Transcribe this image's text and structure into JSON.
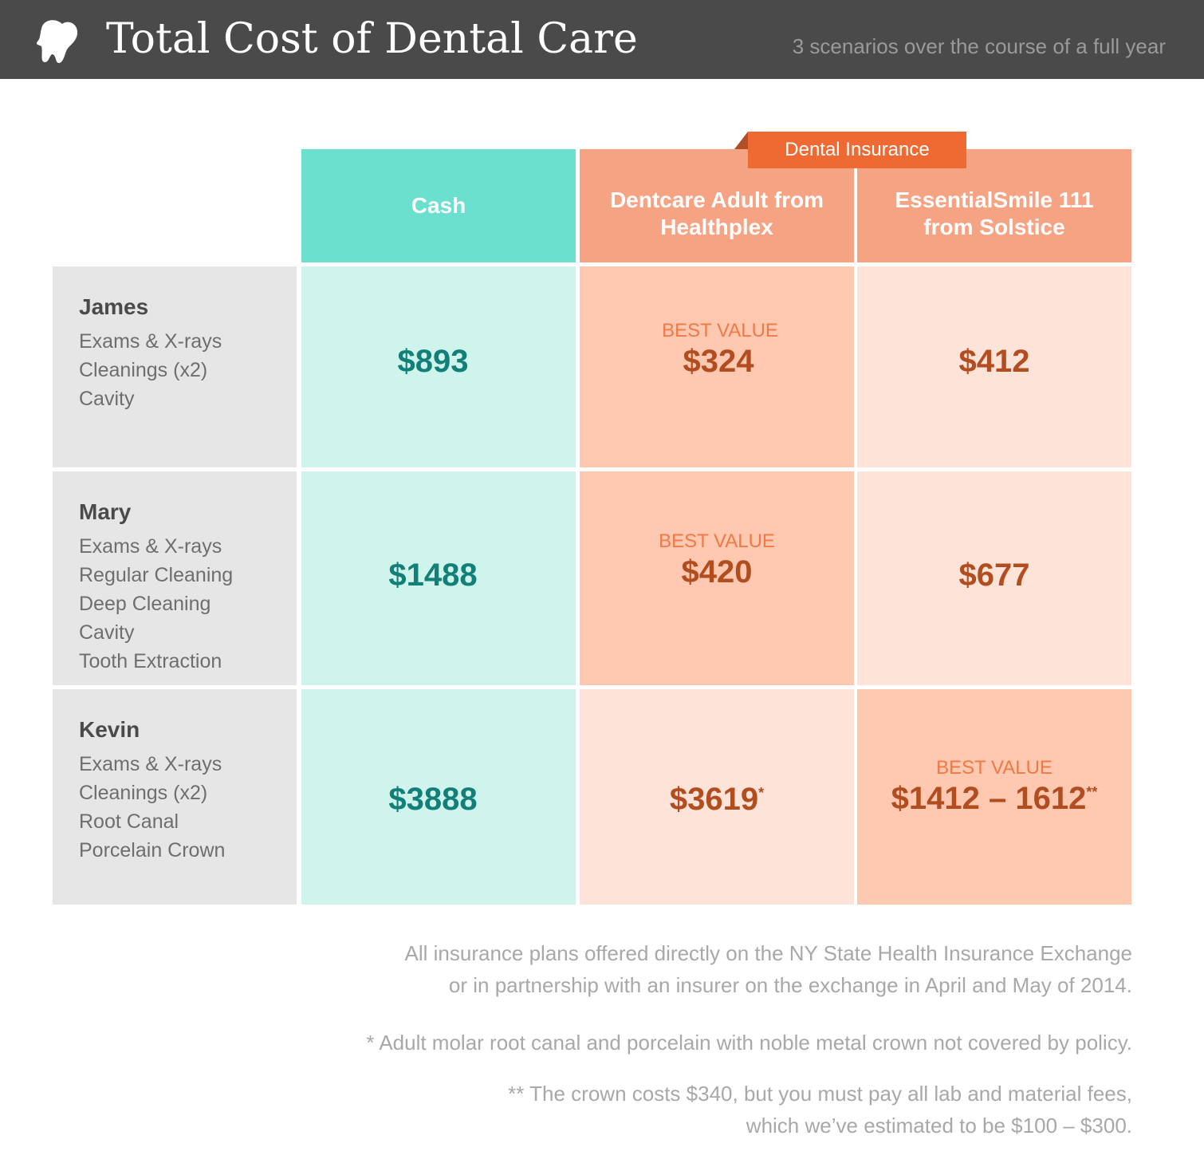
{
  "header": {
    "title": "Total Cost of Dental Care",
    "subtitle": "3 scenarios over the course of a full year"
  },
  "colors": {
    "header_bg": "#4a4a4a",
    "cash_header": "#6ce0ce",
    "cash_cell": "#cef4ec",
    "insurance_header": "#f5a383",
    "insurance_light": "#fee3d8",
    "insurance_best": "#fec8b1",
    "insurance_tab": "#ef6a32",
    "label_bg": "#e6e6e6"
  },
  "chart_data": {
    "type": "table",
    "title": "Total Cost of Dental Care",
    "subtitle": "3 scenarios over the course of a full year",
    "group_label": "Dental Insurance",
    "columns": [
      "Cash",
      "Dentcare Adult from Healthplex",
      "EssentialSmile 111 from Solstice"
    ],
    "best_value_label": "BEST VALUE",
    "rows": [
      {
        "name": "James",
        "services": [
          "Exams & X-rays",
          "Cleanings (x2)",
          "Cavity"
        ],
        "cash": "$893",
        "healthplex": "$324",
        "healthplex_note": "",
        "solstice": "$412",
        "solstice_note": "",
        "best": "healthplex"
      },
      {
        "name": "Mary",
        "services": [
          "Exams & X-rays",
          "Regular Cleaning",
          "Deep Cleaning",
          "Cavity",
          "Tooth Extraction"
        ],
        "cash": "$1488",
        "healthplex": "$420",
        "healthplex_note": "",
        "solstice": "$677",
        "solstice_note": "",
        "best": "healthplex"
      },
      {
        "name": "Kevin",
        "services": [
          "Exams & X-rays",
          "Cleanings (x2)",
          "Root Canal",
          "Porcelain Crown"
        ],
        "cash": "$3888",
        "healthplex": "$3619",
        "healthplex_note": "*",
        "solstice": "$1412 – 1612",
        "solstice_note": "**",
        "best": "solstice"
      }
    ]
  },
  "footnotes": {
    "source_line1": "All insurance plans offered directly on the NY State Health Insurance Exchange",
    "source_line2": "or in partnership with an insurer on the exchange in April and May of 2014.",
    "note1": "* Adult molar root canal and porcelain with noble metal crown not covered by policy.",
    "note2_line1": "** The crown costs $340, but you must pay all lab and material fees,",
    "note2_line2": "which we’ve estimated to be $100 – $300."
  }
}
